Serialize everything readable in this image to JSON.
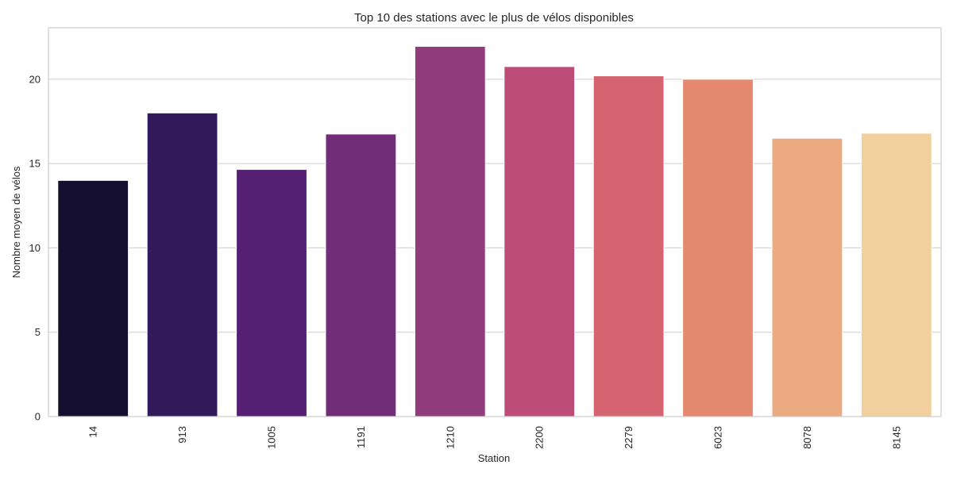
{
  "chart_data": {
    "type": "bar",
    "title": "Top 10 des stations avec le plus de vélos disponibles",
    "xlabel": "Station",
    "ylabel": "Nombre moyen de vélos",
    "categories": [
      "14",
      "913",
      "1005",
      "1191",
      "1210",
      "2200",
      "2279",
      "6023",
      "8078",
      "8145"
    ],
    "values": [
      14.0,
      18.0,
      14.65,
      16.75,
      21.95,
      20.75,
      20.2,
      20.0,
      16.5,
      16.8
    ],
    "yticks": [
      0,
      5,
      10,
      15,
      20
    ],
    "ylim": [
      0,
      23.05
    ],
    "grid": "horizontal",
    "legend": "none",
    "tick_label_rotation_x": 90,
    "colors": [
      "#150f2f",
      "#331b5b",
      "#552074",
      "#712d78",
      "#913d7b",
      "#bd4d77",
      "#d56370",
      "#e58870",
      "#ecaa80",
      "#f2d09d"
    ],
    "axes_edge_color": "#cccccc",
    "grid_color": "#cccccc"
  }
}
